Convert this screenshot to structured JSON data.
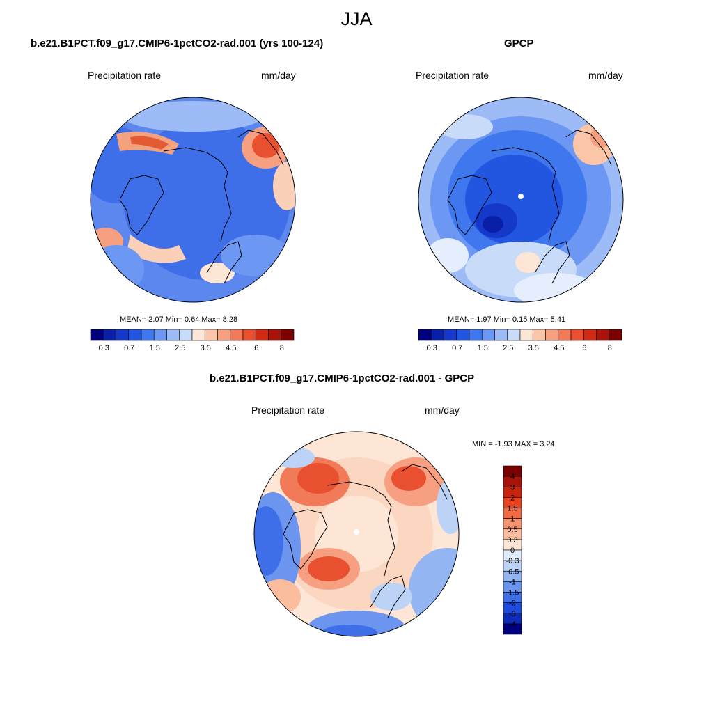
{
  "figure": {
    "title": "JJA"
  },
  "panels": {
    "model": {
      "title": "b.e21.B1PCT.f09_g17.CMIP6-1pctCO2-rad.001 (yrs 100-124)",
      "left_label": "Precipitation rate",
      "right_label": "mm/day",
      "stats": "MEAN=   2.07  Min=   0.64  Max=   8.28",
      "colorbar_labels": [
        "0.3",
        "0.7",
        "1.5",
        "2.5",
        "3.5",
        "4.5",
        "6",
        "8"
      ]
    },
    "obs": {
      "title": "GPCP",
      "left_label": "Precipitation rate",
      "right_label": "mm/day",
      "stats": "MEAN=   1.97  Min=   0.15  Max=   5.41",
      "colorbar_labels": [
        "0.3",
        "0.7",
        "1.5",
        "2.5",
        "3.5",
        "4.5",
        "6",
        "8"
      ]
    },
    "diff": {
      "title": "b.e21.B1PCT.f09_g17.CMIP6-1pctCO2-rad.001 - GPCP",
      "left_label": "Precipitation rate",
      "right_label": "mm/day",
      "stats": "MIN =  -1.93 MAX =   3.24",
      "colorbar_labels": [
        "4",
        "3",
        "2",
        "1.5",
        "1",
        "0.5",
        "0.3",
        "0",
        "-0.3",
        "-0.5",
        "-1",
        "-1.5",
        "-2",
        "-3",
        "-4"
      ]
    }
  },
  "colors": {
    "abs_scale": [
      "#00007f",
      "#0a1fa8",
      "#1438c8",
      "#2356e0",
      "#3f77ee",
      "#6c98f4",
      "#9dbbf7",
      "#c8dcfa",
      "#fde6d6",
      "#fbc5a8",
      "#f6a081",
      "#f17a58",
      "#e9502f",
      "#cf2b12",
      "#a8140a",
      "#7c0000"
    ],
    "diff_scale": [
      "#7c0000",
      "#a8140a",
      "#c9240e",
      "#e9421f",
      "#f16a43",
      "#f69371",
      "#fbbd9e",
      "#fde6d6",
      "#deebfa",
      "#bcd3f6",
      "#93b6f2",
      "#6b95ee",
      "#3f6fe8",
      "#1f4bdc",
      "#0f2cb8",
      "#00007f"
    ]
  }
}
